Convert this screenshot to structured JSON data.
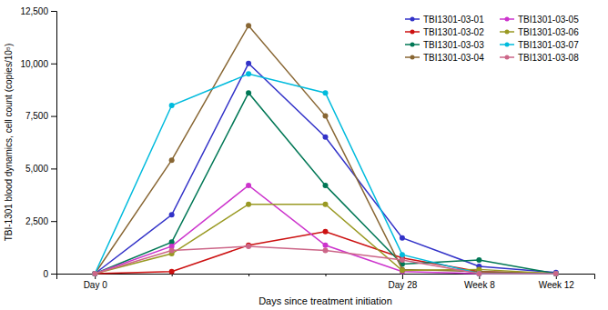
{
  "chart_data": {
    "type": "line",
    "xlabel": "Days since treatment initiation",
    "ylabel": "TBI-1301 blood dynamics, cell count (copies/10⁵)",
    "categories": [
      "Day 0",
      null,
      null,
      null,
      "Day 28",
      "Week 8",
      "Week 12"
    ],
    "ylim": [
      0,
      12500
    ],
    "yticks": [
      0,
      {
        "value": 2500,
        "label": "2,500"
      },
      {
        "value": 5000,
        "label": "5,000"
      },
      {
        "value": 7500,
        "label": "7,500"
      },
      {
        "value": 10000,
        "label": "10,000"
      },
      {
        "value": 12500,
        "label": "12,500"
      }
    ],
    "grid": false,
    "legend": "upper right",
    "marker": "circle",
    "line_style": "solid",
    "series": [
      {
        "name": "TBI1301-03-01",
        "color": "#3232c8",
        "values": [
          0,
          2800,
          10000,
          6500,
          1700,
          350,
          50
        ]
      },
      {
        "name": "TBI1301-03-02",
        "color": "#cc1111",
        "values": [
          0,
          100,
          1350,
          2000,
          750,
          100,
          0
        ]
      },
      {
        "name": "TBI1301-03-03",
        "color": "#007755",
        "values": [
          0,
          1500,
          8600,
          4200,
          450,
          650,
          0
        ]
      },
      {
        "name": "TBI1301-03-04",
        "color": "#886633",
        "values": [
          0,
          5400,
          11800,
          7500,
          200,
          100,
          0
        ]
      },
      {
        "name": "TBI1301-03-05",
        "color": "#cc33cc",
        "values": [
          0,
          1300,
          4200,
          1350,
          100,
          0,
          0
        ]
      },
      {
        "name": "TBI1301-03-06",
        "color": "#999922",
        "values": [
          0,
          950,
          3300,
          3300,
          150,
          200,
          0
        ]
      },
      {
        "name": "TBI1301-03-07",
        "color": "#00bbdd",
        "values": [
          0,
          8000,
          9500,
          8600,
          900,
          0,
          0
        ]
      },
      {
        "name": "TBI1301-03-08",
        "color": "#cc6688",
        "values": [
          0,
          1100,
          1300,
          1100,
          650,
          0,
          0
        ]
      }
    ]
  }
}
